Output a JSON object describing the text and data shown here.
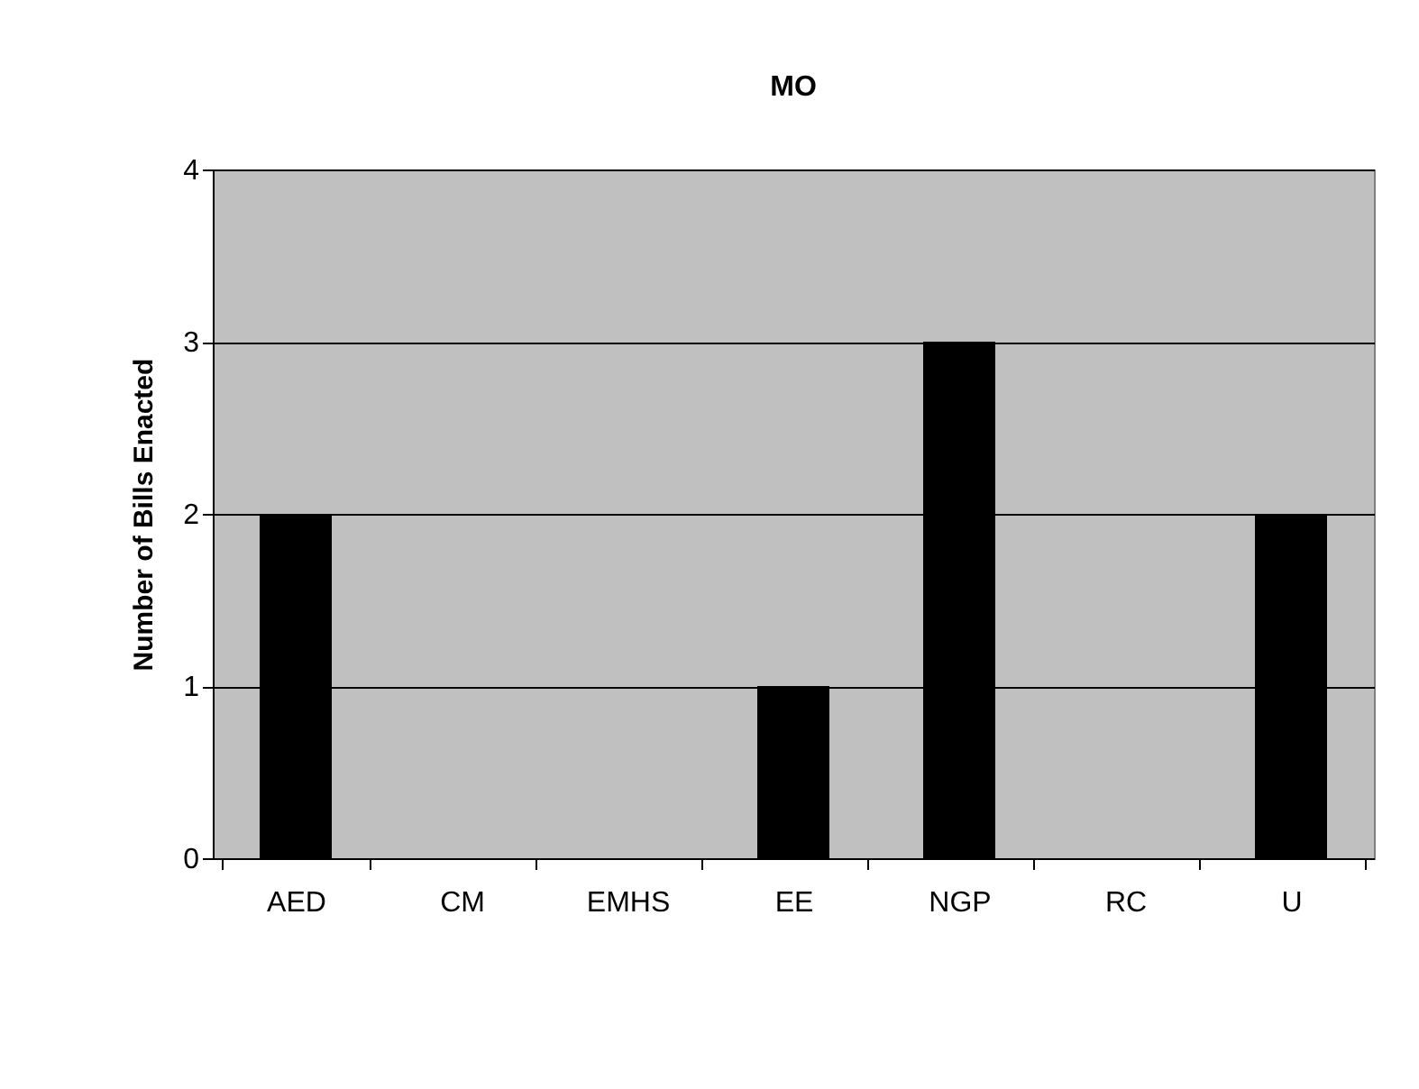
{
  "chart_data": {
    "type": "bar",
    "title": "MO",
    "ylabel": "Number of Bills Enacted",
    "categories": [
      "AED",
      "CM",
      "EMHS",
      "EE",
      "NGP",
      "RC",
      "U"
    ],
    "values": [
      2,
      0,
      0,
      1,
      3,
      0,
      2
    ],
    "color": "#000000",
    "ylim": [
      0,
      4
    ],
    "yticks": [
      0,
      1,
      2,
      3,
      4
    ],
    "grid": "y"
  }
}
